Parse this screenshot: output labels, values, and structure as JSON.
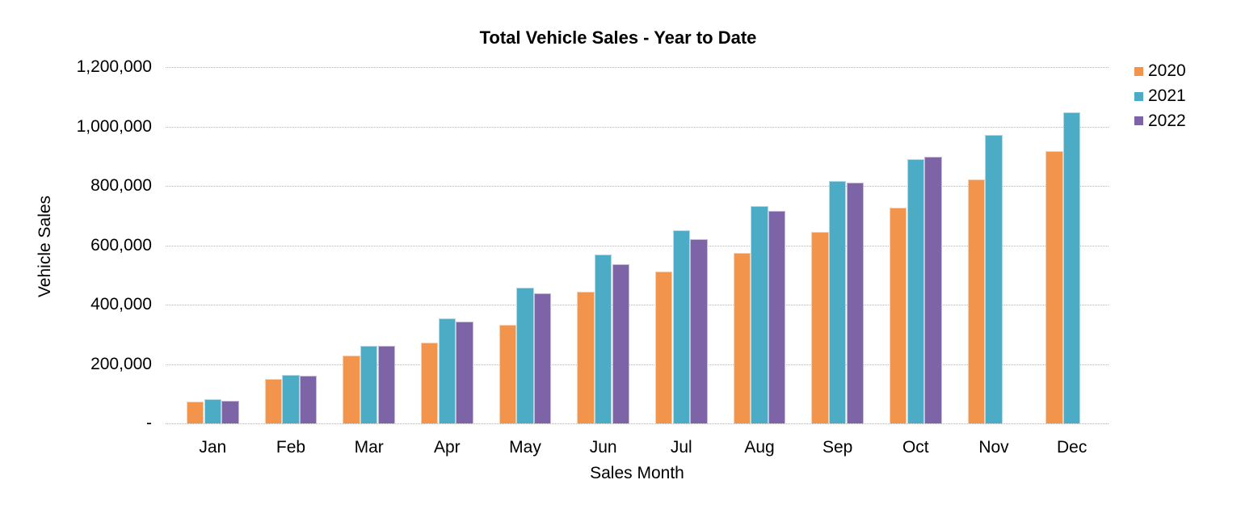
{
  "chart_data": {
    "type": "bar",
    "title": "Total Vehicle Sales - Year to Date",
    "xlabel": "Sales Month",
    "ylabel": "Vehicle Sales",
    "categories": [
      "Jan",
      "Feb",
      "Mar",
      "Apr",
      "May",
      "Jun",
      "Jul",
      "Aug",
      "Sep",
      "Oct",
      "Nov",
      "Dec"
    ],
    "series": [
      {
        "name": "2020",
        "color": "#F2944B",
        "values": [
          73000,
          150000,
          230000,
          272000,
          331000,
          443000,
          513000,
          574000,
          644000,
          727000,
          821000,
          917000
        ]
      },
      {
        "name": "2021",
        "color": "#4DACC5",
        "values": [
          81000,
          163000,
          261000,
          355000,
          457000,
          568000,
          650000,
          733000,
          817000,
          890000,
          971000,
          1049000
        ]
      },
      {
        "name": "2022",
        "color": "#7C64A6",
        "values": [
          76000,
          160000,
          260000,
          343000,
          437000,
          536000,
          620000,
          717000,
          812000,
          897000,
          null,
          null
        ]
      }
    ],
    "ylim": [
      0,
      1200000
    ],
    "ytick_step": 200000,
    "ytick_labels": [
      "-",
      "200,000",
      "400,000",
      "600,000",
      "800,000",
      "1,000,000",
      "1,200,000"
    ],
    "grid": true,
    "grid_color": "#a7b8d8",
    "text_color": "#000000",
    "legend_position": "top-right"
  }
}
